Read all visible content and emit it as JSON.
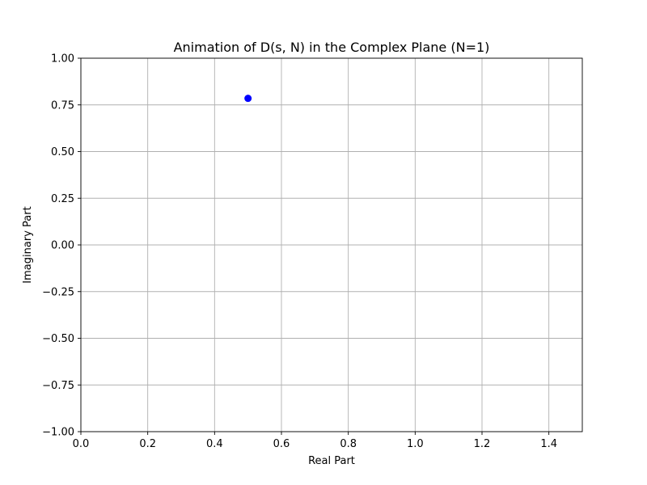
{
  "chart_data": {
    "type": "scatter",
    "title": "Animation of D(s, N) in the Complex Plane (N=1)",
    "xlabel": "Real Part",
    "ylabel": "Imaginary Part",
    "xlim": [
      0.0,
      1.5
    ],
    "ylim": [
      -1.0,
      1.0
    ],
    "xticks": [
      "0.0",
      "0.2",
      "0.4",
      "0.6",
      "0.8",
      "1.0",
      "1.2",
      "1.4"
    ],
    "xtick_values": [
      0.0,
      0.2,
      0.4,
      0.6,
      0.8,
      1.0,
      1.2,
      1.4
    ],
    "yticks": [
      "−1.00",
      "−0.75",
      "−0.50",
      "−0.25",
      "0.00",
      "0.25",
      "0.50",
      "0.75",
      "1.00"
    ],
    "ytick_values": [
      -1.0,
      -0.75,
      -0.5,
      -0.25,
      0.0,
      0.25,
      0.5,
      0.75,
      1.0
    ],
    "grid": true,
    "series": [
      {
        "points": [
          {
            "x": 0.5,
            "y": 0.785
          }
        ],
        "color": "#0000ff"
      }
    ]
  }
}
